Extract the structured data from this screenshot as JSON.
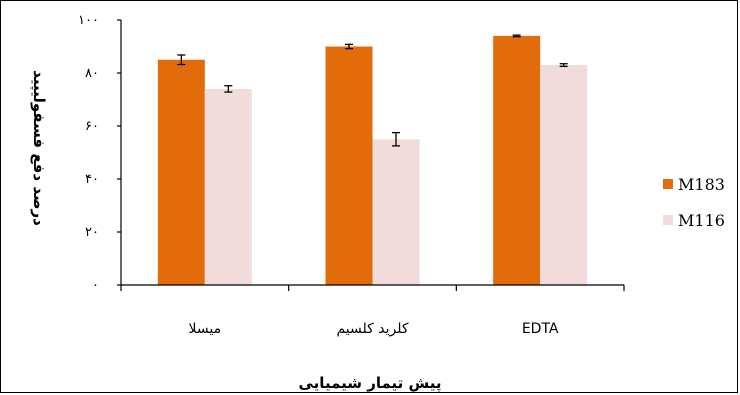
{
  "chart_data": {
    "type": "bar",
    "categories": [
      "میسلا",
      "کلرید کلسیم",
      "EDTA"
    ],
    "series": [
      {
        "name": "M183",
        "values": [
          85,
          90,
          94
        ],
        "errors": [
          1.8,
          0.8,
          0.3
        ],
        "color": "#E36C0A"
      },
      {
        "name": "M116",
        "values": [
          74,
          55,
          83
        ],
        "errors": [
          1.2,
          2.5,
          0.5
        ],
        "color": "#F2DCDB"
      }
    ],
    "ylim": [
      0,
      100
    ],
    "yticks": [
      "۰",
      "۲۰",
      "۴۰",
      "۶۰",
      "۸۰",
      "۱۰۰"
    ],
    "ytick_values": [
      0,
      20,
      40,
      60,
      80,
      100
    ],
    "xlabel": "پیش تیمار شیمیایی",
    "ylabel": "درصد دفع فسفولیپید",
    "legend_position": "right",
    "grid": false
  }
}
